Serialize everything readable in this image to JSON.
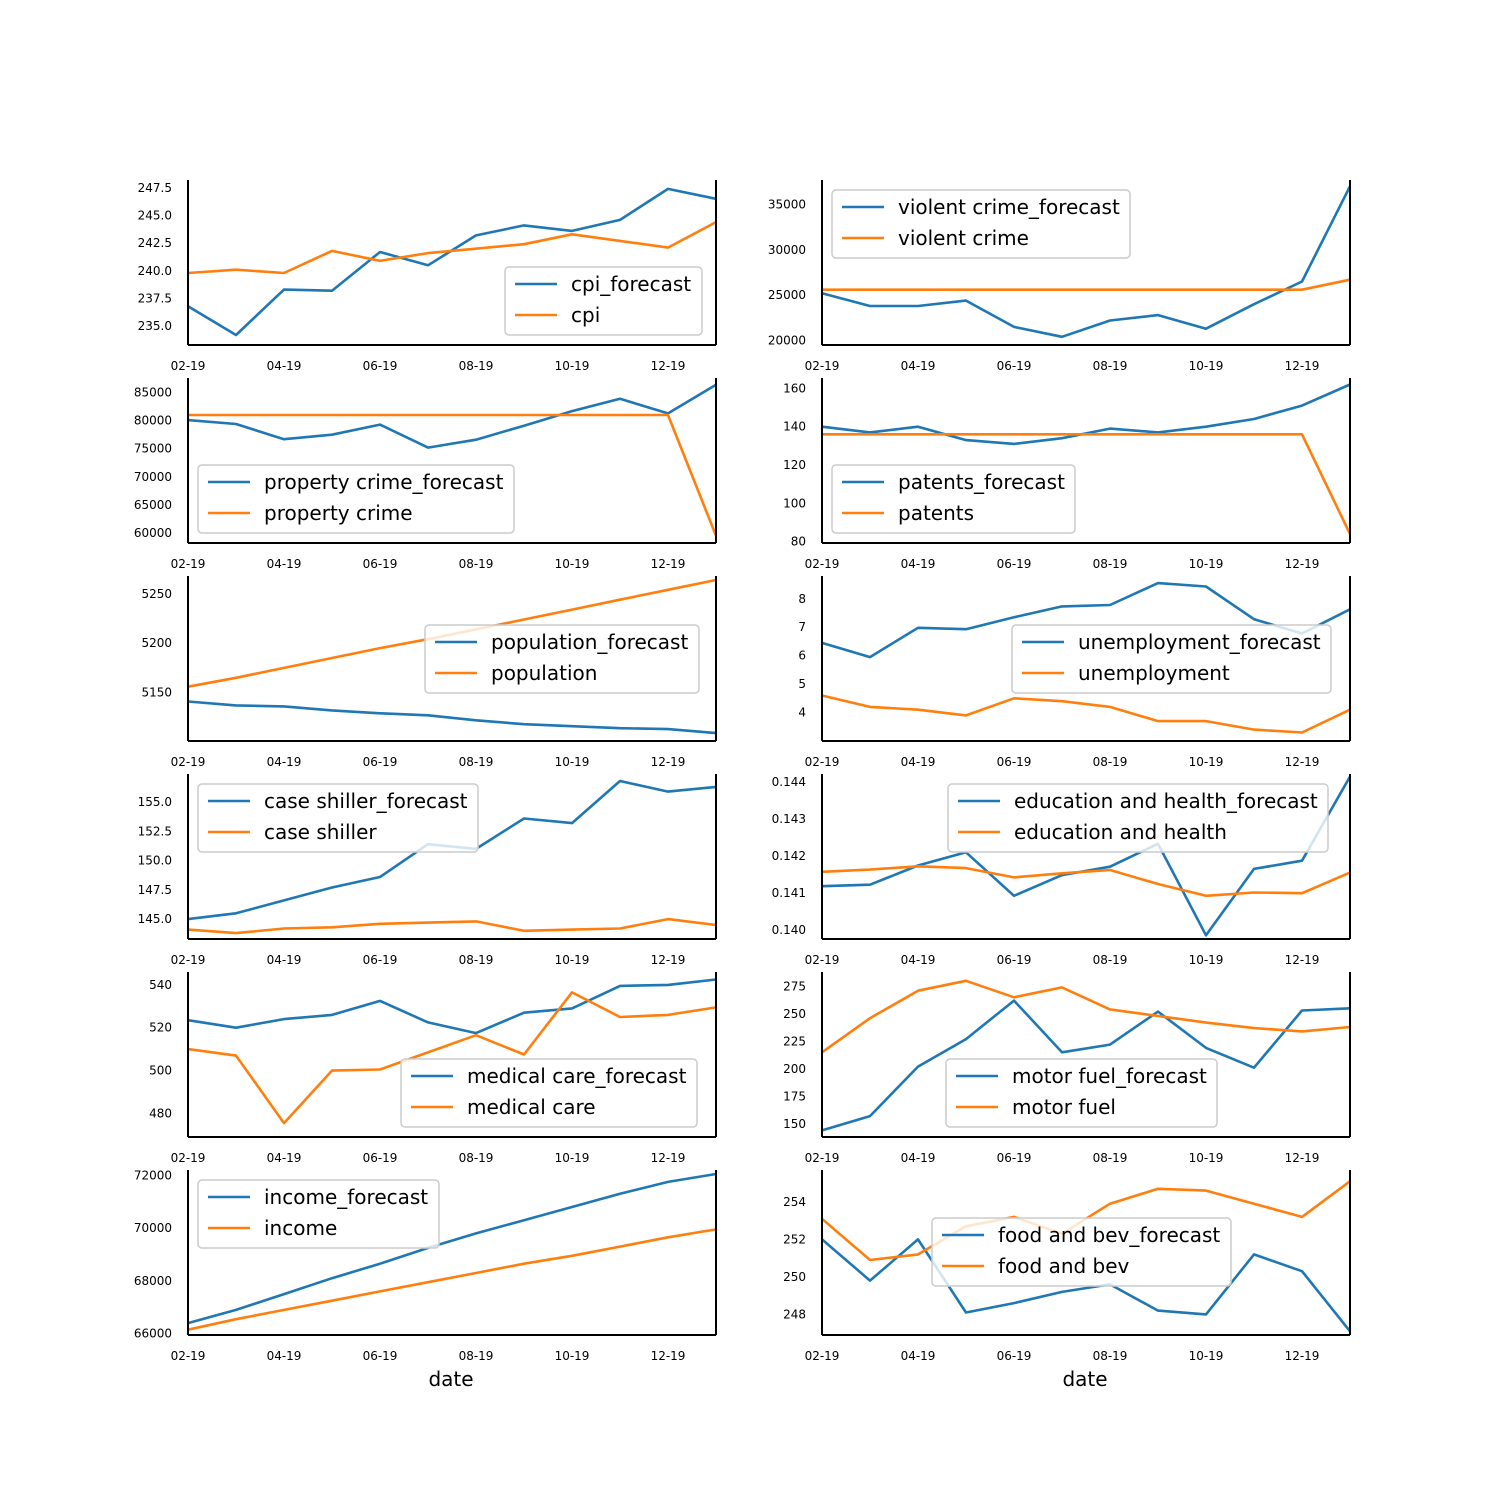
{
  "colors": {
    "forecast": "#1f77b4",
    "actual": "#ff7f0e"
  },
  "x_ticks": [
    "02-19",
    "04-19",
    "06-19",
    "08-19",
    "10-19",
    "12-19"
  ],
  "chart_data": [
    {
      "type": "line",
      "x": [
        "02-19",
        "03-19",
        "04-19",
        "05-19",
        "06-19",
        "07-19",
        "08-19",
        "09-19",
        "10-19",
        "11-19",
        "12-19",
        "01-20"
      ],
      "ylim": [
        233.3,
        248.2
      ],
      "yticks": [
        235.0,
        237.5,
        240.0,
        242.5,
        245.0,
        247.5
      ],
      "ytick_labels": [
        "235.0",
        "237.5",
        "240.0",
        "242.5",
        "245.0",
        "247.5"
      ],
      "legend": "lower right",
      "series": [
        {
          "name": "cpi_forecast",
          "values": [
            236.8,
            234.2,
            238.3,
            238.2,
            241.7,
            240.5,
            243.2,
            244.1,
            243.6,
            244.6,
            247.4,
            246.5
          ]
        },
        {
          "name": "cpi",
          "values": [
            239.8,
            240.1,
            239.8,
            241.8,
            240.9,
            241.6,
            242.0,
            242.4,
            243.3,
            242.7,
            242.1,
            244.4
          ]
        }
      ]
    },
    {
      "type": "line",
      "x": [
        "02-19",
        "03-19",
        "04-19",
        "05-19",
        "06-19",
        "07-19",
        "08-19",
        "09-19",
        "10-19",
        "11-19",
        "12-19",
        "01-20"
      ],
      "ylim": [
        19500,
        37700
      ],
      "yticks": [
        20000,
        25000,
        30000,
        35000
      ],
      "ytick_labels": [
        "20000",
        "25000",
        "30000",
        "35000"
      ],
      "legend": "upper left",
      "series": [
        {
          "name": "violent crime_forecast",
          "values": [
            25200,
            23800,
            23800,
            24400,
            21500,
            20400,
            22200,
            22800,
            21300,
            24000,
            26500,
            37000
          ]
        },
        {
          "name": "violent crime",
          "values": [
            25600,
            25600,
            25600,
            25600,
            25600,
            25600,
            25600,
            25600,
            25600,
            25600,
            25600,
            26700
          ]
        }
      ]
    },
    {
      "type": "line",
      "x": [
        "02-19",
        "03-19",
        "04-19",
        "05-19",
        "06-19",
        "07-19",
        "08-19",
        "09-19",
        "10-19",
        "11-19",
        "12-19",
        "01-20"
      ],
      "ylim": [
        58200,
        87600
      ],
      "yticks": [
        60000,
        65000,
        70000,
        75000,
        80000,
        85000
      ],
      "ytick_labels": [
        "60000",
        "65000",
        "70000",
        "75000",
        "80000",
        "85000"
      ],
      "legend": "lower left",
      "series": [
        {
          "name": "property crime_forecast",
          "values": [
            80100,
            79400,
            76700,
            77500,
            79300,
            75200,
            76600,
            79100,
            81700,
            83900,
            81300,
            86400
          ]
        },
        {
          "name": "property crime",
          "values": [
            81000,
            81000,
            81000,
            81000,
            81000,
            81000,
            81000,
            81000,
            81000,
            81000,
            81000,
            59500
          ]
        }
      ]
    },
    {
      "type": "line",
      "x": [
        "02-19",
        "03-19",
        "04-19",
        "05-19",
        "06-19",
        "07-19",
        "08-19",
        "09-19",
        "10-19",
        "11-19",
        "12-19",
        "01-20"
      ],
      "ylim": [
        79.3,
        165.4
      ],
      "yticks": [
        80,
        100,
        120,
        140,
        160
      ],
      "ytick_labels": [
        "80",
        "100",
        "120",
        "140",
        "160"
      ],
      "legend": "lower left",
      "series": [
        {
          "name": "patents_forecast",
          "values": [
            140,
            137,
            140,
            133,
            131,
            134,
            139,
            137,
            140,
            144,
            151,
            162
          ]
        },
        {
          "name": "patents",
          "values": [
            136,
            136,
            136,
            136,
            136,
            136,
            136,
            136,
            136,
            136,
            136,
            84
          ]
        }
      ]
    },
    {
      "type": "line",
      "x": [
        "02-19",
        "03-19",
        "04-19",
        "05-19",
        "06-19",
        "07-19",
        "08-19",
        "09-19",
        "10-19",
        "11-19",
        "12-19",
        "01-20"
      ],
      "ylim": [
        5101,
        5268
      ],
      "yticks": [
        5150,
        5200,
        5250
      ],
      "ytick_labels": [
        "5150",
        "5200",
        "5250"
      ],
      "legend": "center right",
      "series": [
        {
          "name": "population_forecast",
          "values": [
            5141,
            5137,
            5136,
            5132,
            5129,
            5127,
            5122,
            5118,
            5116,
            5114,
            5113,
            5109
          ]
        },
        {
          "name": "population",
          "values": [
            5156,
            5165,
            5175,
            5185,
            5195,
            5204,
            5214,
            5224,
            5234,
            5244,
            5254,
            5264
          ]
        }
      ]
    },
    {
      "type": "line",
      "x": [
        "02-19",
        "03-19",
        "04-19",
        "05-19",
        "06-19",
        "07-19",
        "08-19",
        "09-19",
        "10-19",
        "11-19",
        "12-19",
        "01-20"
      ],
      "ylim": [
        3.0,
        8.8
      ],
      "yticks": [
        4,
        5,
        6,
        7,
        8
      ],
      "ytick_labels": [
        "4",
        "5",
        "6",
        "7",
        "8"
      ],
      "legend": "center right",
      "series": [
        {
          "name": "unemployment_forecast",
          "values": [
            6.45,
            5.95,
            6.98,
            6.93,
            7.35,
            7.73,
            7.78,
            8.55,
            8.43,
            7.28,
            6.78,
            7.63
          ]
        },
        {
          "name": "unemployment",
          "values": [
            4.6,
            4.2,
            4.1,
            3.9,
            4.5,
            4.4,
            4.2,
            3.7,
            3.7,
            3.4,
            3.3,
            4.1
          ]
        }
      ]
    },
    {
      "type": "line",
      "x": [
        "02-19",
        "03-19",
        "04-19",
        "05-19",
        "06-19",
        "07-19",
        "08-19",
        "09-19",
        "10-19",
        "11-19",
        "12-19",
        "01-20"
      ],
      "ylim": [
        143.3,
        157.4
      ],
      "yticks": [
        145.0,
        147.5,
        150.0,
        152.5,
        155.0
      ],
      "ytick_labels": [
        "145.0",
        "147.5",
        "150.0",
        "152.5",
        "155.0"
      ],
      "legend": "upper left",
      "series": [
        {
          "name": "case shiller_forecast",
          "values": [
            145.0,
            145.5,
            146.6,
            147.7,
            148.6,
            151.4,
            151.0,
            153.6,
            153.2,
            156.8,
            155.9,
            156.3
          ]
        },
        {
          "name": "case shiller",
          "values": [
            144.1,
            143.8,
            144.2,
            144.3,
            144.6,
            144.7,
            144.8,
            144.0,
            144.1,
            144.2,
            145.0,
            144.5
          ]
        }
      ]
    },
    {
      "type": "line",
      "x": [
        "02-19",
        "03-19",
        "04-19",
        "05-19",
        "06-19",
        "07-19",
        "08-19",
        "09-19",
        "10-19",
        "11-19",
        "12-19",
        "01-20"
      ],
      "ylim": [
        0.13975,
        0.14422
      ],
      "yticks": [
        0.14,
        0.141,
        0.142,
        0.143,
        0.144
      ],
      "ytick_labels": [
        "0.140",
        "0.141",
        "0.142",
        "0.143",
        "0.144"
      ],
      "legend": "upper right",
      "series": [
        {
          "name": "education and health_forecast",
          "values": [
            0.14118,
            0.14122,
            0.14174,
            0.1421,
            0.14092,
            0.14148,
            0.14171,
            0.14233,
            0.13985,
            0.14165,
            0.14187,
            0.14415
          ]
        },
        {
          "name": "education and health",
          "values": [
            0.14157,
            0.14163,
            0.14172,
            0.14167,
            0.14142,
            0.14153,
            0.14162,
            0.14124,
            0.14092,
            0.14101,
            0.14099,
            0.14155
          ]
        }
      ]
    },
    {
      "type": "line",
      "x": [
        "02-19",
        "03-19",
        "04-19",
        "05-19",
        "06-19",
        "07-19",
        "08-19",
        "09-19",
        "10-19",
        "11-19",
        "12-19",
        "01-20"
      ],
      "ylim": [
        469,
        546
      ],
      "yticks": [
        480,
        500,
        520,
        540
      ],
      "ytick_labels": [
        "480",
        "500",
        "520",
        "540"
      ],
      "legend": "lower right",
      "series": [
        {
          "name": "medical care_forecast",
          "values": [
            523.5,
            520.0,
            524.0,
            526.0,
            532.5,
            522.5,
            517.5,
            527.0,
            529.0,
            539.5,
            540.0,
            542.5
          ]
        },
        {
          "name": "medical care",
          "values": [
            510.0,
            507.0,
            475.5,
            500.0,
            500.5,
            508.5,
            516.5,
            507.5,
            536.5,
            525.0,
            526.0,
            529.5
          ]
        }
      ]
    },
    {
      "type": "line",
      "x": [
        "02-19",
        "03-19",
        "04-19",
        "05-19",
        "06-19",
        "07-19",
        "08-19",
        "09-19",
        "10-19",
        "11-19",
        "12-19",
        "01-20"
      ],
      "ylim": [
        138,
        288
      ],
      "yticks": [
        150,
        175,
        200,
        225,
        250,
        275
      ],
      "ytick_labels": [
        "150",
        "175",
        "200",
        "225",
        "250",
        "275"
      ],
      "legend": "lower center",
      "series": [
        {
          "name": "motor fuel_forecast",
          "values": [
            144,
            157,
            202,
            227,
            262,
            215,
            222,
            252,
            219,
            201,
            253,
            255
          ]
        },
        {
          "name": "motor fuel",
          "values": [
            215,
            246,
            271,
            280,
            265,
            274,
            254,
            248,
            242,
            237,
            234,
            238
          ]
        }
      ]
    },
    {
      "type": "line",
      "x": [
        "02-19",
        "03-19",
        "04-19",
        "05-19",
        "06-19",
        "07-19",
        "08-19",
        "09-19",
        "10-19",
        "11-19",
        "12-19",
        "01-20"
      ],
      "ylim": [
        65950,
        72200
      ],
      "yticks": [
        66000,
        68000,
        70000,
        72000
      ],
      "ytick_labels": [
        "66000",
        "68000",
        "70000",
        "72000"
      ],
      "legend": "upper left",
      "series": [
        {
          "name": "income_forecast",
          "values": [
            66400,
            66900,
            67500,
            68100,
            68650,
            69250,
            69800,
            70300,
            70800,
            71300,
            71750,
            72050
          ]
        },
        {
          "name": "income",
          "values": [
            66150,
            66550,
            66900,
            67250,
            67600,
            67950,
            68300,
            68650,
            68950,
            69300,
            69650,
            69950
          ]
        }
      ]
    },
    {
      "type": "line",
      "x": [
        "02-19",
        "03-19",
        "04-19",
        "05-19",
        "06-19",
        "07-19",
        "08-19",
        "09-19",
        "10-19",
        "11-19",
        "12-19",
        "01-20"
      ],
      "ylim": [
        246.9,
        255.7
      ],
      "yticks": [
        248,
        250,
        252,
        254
      ],
      "ytick_labels": [
        "248",
        "250",
        "252",
        "254"
      ],
      "legend": "center",
      "series": [
        {
          "name": "food and bev_forecast",
          "values": [
            252.0,
            249.8,
            252.0,
            248.1,
            248.6,
            249.2,
            249.6,
            248.2,
            248.0,
            251.2,
            250.3,
            247.1
          ]
        },
        {
          "name": "food and bev",
          "values": [
            253.1,
            250.9,
            251.2,
            252.7,
            253.2,
            252.3,
            253.9,
            254.7,
            254.6,
            253.9,
            253.2,
            255.1
          ]
        }
      ]
    }
  ],
  "xlabel_left": "date",
  "xlabel_right": "date"
}
